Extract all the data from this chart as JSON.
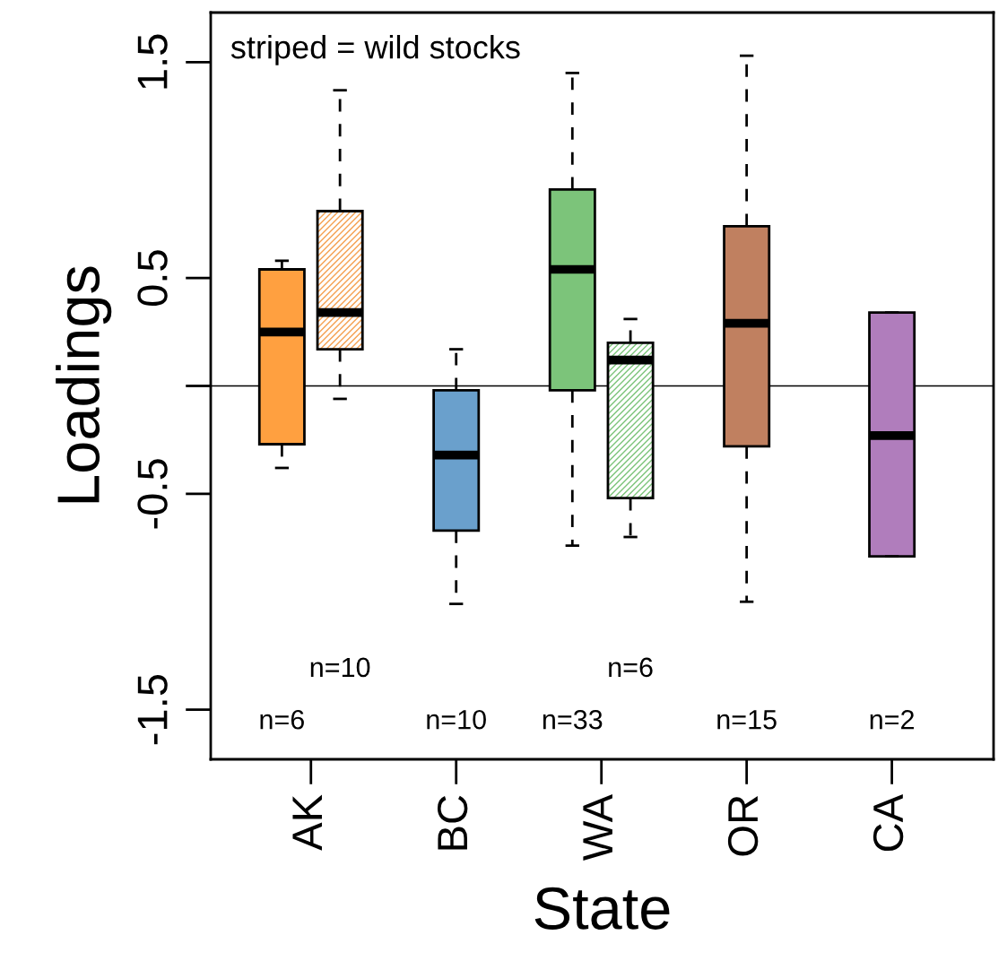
{
  "chart_data": {
    "type": "box",
    "xlabel": "State",
    "ylabel": "Loadings",
    "categories": [
      "AK",
      "BC",
      "WA",
      "OR",
      "CA"
    ],
    "ylim": [
      -1.73,
      1.73
    ],
    "yticks": [
      {
        "value": -1.5,
        "label": "-1.5"
      },
      {
        "value": -0.5,
        "label": "-0.5"
      },
      {
        "value": 0,
        "label": null
      },
      {
        "value": 0.5,
        "label": "0.5"
      },
      {
        "value": 1.5,
        "label": "1.5"
      }
    ],
    "series": [
      {
        "colors": [
          "#ffa040",
          "#6aa0cc",
          "#7cc47a",
          "#c08060",
          "#b07dbc"
        ],
        "boxes": [
          {
            "low": -0.38,
            "q1": -0.27,
            "median": 0.25,
            "q3": 0.54,
            "high": 0.58
          },
          {
            "low": -1.01,
            "q1": -0.67,
            "median": -0.32,
            "q3": -0.02,
            "high": 0.17
          },
          {
            "low": -0.74,
            "q1": -0.02,
            "median": 0.54,
            "q3": 0.91,
            "high": 1.45
          },
          {
            "low": -1.0,
            "q1": -0.28,
            "median": 0.29,
            "q3": 0.74,
            "high": 1.53
          },
          {
            "low": -0.79,
            "q1": -0.79,
            "median": -0.23,
            "q3": 0.34,
            "high": 0.34
          }
        ]
      },
      {
        "colors": [
          "#f5a050",
          null,
          "#7cc47a",
          null,
          null
        ],
        "boxes": [
          {
            "low": -0.06,
            "q1": 0.17,
            "median": 0.34,
            "q3": 0.81,
            "high": 1.37
          },
          null,
          {
            "low": -0.7,
            "q1": -0.52,
            "median": 0.12,
            "q3": 0.2,
            "high": 0.31
          },
          null,
          null
        ]
      }
    ],
    "ref_lines": [
      {
        "axis": "y",
        "value": 0,
        "color": "#000000"
      }
    ],
    "annotations": [
      "striped = wild stocks",
      "n=6",
      "n=10",
      "n=10",
      "n=33",
      "n=6",
      "n=15",
      "n=2"
    ],
    "grid": false,
    "legend": false
  }
}
